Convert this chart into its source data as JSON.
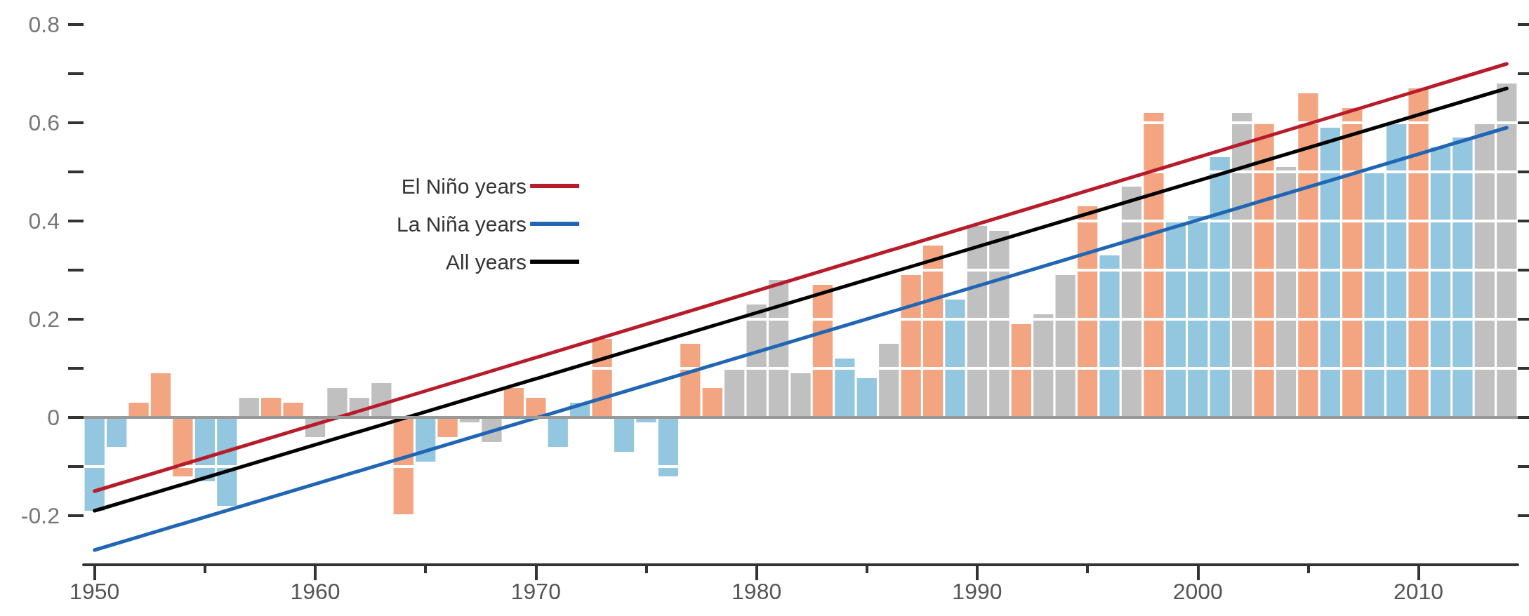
{
  "chart_data": {
    "type": "bar",
    "xlim": [
      1949.5,
      2014.5
    ],
    "xticks": [
      1950,
      {
        "value": 1955,
        "label": null
      },
      1960,
      {
        "value": 1965,
        "label": null
      },
      1970,
      {
        "value": 1975,
        "label": null
      },
      1980,
      {
        "value": 1985,
        "label": null
      },
      1990,
      {
        "value": 1995,
        "label": null
      },
      2000,
      {
        "value": 2005,
        "label": null
      },
      2010
    ],
    "ylim": [
      -0.3,
      0.8
    ],
    "yticks": [
      -0.2,
      {
        "value": -0.1,
        "label": null
      },
      0,
      {
        "value": 0.1,
        "label": null
      },
      0.2,
      {
        "value": 0.3,
        "label": null
      },
      0.4,
      {
        "value": 0.5,
        "label": null
      },
      0.6,
      {
        "value": 0.7,
        "label": null
      },
      0.8
    ],
    "grid": "y",
    "legend": "top left",
    "marker": "none",
    "line_style": "solid",
    "ref_lines": [
      {
        "axis": "y",
        "value": 0,
        "color": "#999999"
      }
    ],
    "series": [
      {
        "x": [
          1950,
          1951,
          1952,
          1953,
          1954,
          1955,
          1956,
          1957,
          1958,
          1959,
          1960,
          1961,
          1962,
          1963,
          1964,
          1965,
          1966,
          1967,
          1968,
          1969,
          1970,
          1971,
          1972,
          1973,
          1974,
          1975,
          1976,
          1977,
          1978,
          1979,
          1980,
          1981,
          1982,
          1983,
          1984,
          1985,
          1986,
          1987,
          1988,
          1989,
          1990,
          1991,
          1992,
          1993,
          1994,
          1995,
          1996,
          1997,
          1998,
          1999,
          2000,
          2001,
          2002,
          2003,
          2004,
          2005,
          2006,
          2007,
          2008,
          2009,
          2010,
          2011,
          2012,
          2013,
          2014
        ],
        "values": [
          -0.19,
          -0.06,
          0.03,
          0.09,
          -0.12,
          -0.13,
          -0.18,
          0.04,
          0.04,
          0.03,
          -0.04,
          0.06,
          0.04,
          0.07,
          -0.2,
          -0.09,
          -0.04,
          -0.01,
          -0.05,
          0.06,
          0.04,
          -0.06,
          0.03,
          0.16,
          -0.07,
          -0.01,
          -0.12,
          0.15,
          0.06,
          0.1,
          0.23,
          0.28,
          0.09,
          0.27,
          0.12,
          0.08,
          0.15,
          0.29,
          0.35,
          0.24,
          0.39,
          0.38,
          0.19,
          0.21,
          0.29,
          0.43,
          0.33,
          0.47,
          0.62,
          0.4,
          0.41,
          0.53,
          0.62,
          0.6,
          0.51,
          0.66,
          0.59,
          0.63,
          0.5,
          0.6,
          0.67,
          0.55,
          0.57,
          0.6,
          0.68
        ],
        "colors": [
          "#93c6df",
          "#93c6df",
          "#f2a580",
          "#f2a580",
          "#f2a580",
          "#93c6df",
          "#93c6df",
          "#c0c0c0",
          "#f2a580",
          "#f2a580",
          "#c0c0c0",
          "#c0c0c0",
          "#c0c0c0",
          "#c0c0c0",
          "#f2a580",
          "#93c6df",
          "#f2a580",
          "#c0c0c0",
          "#c0c0c0",
          "#f2a580",
          "#f2a580",
          "#93c6df",
          "#93c6df",
          "#f2a580",
          "#93c6df",
          "#93c6df",
          "#93c6df",
          "#f2a580",
          "#f2a580",
          "#c0c0c0",
          "#c0c0c0",
          "#c0c0c0",
          "#c0c0c0",
          "#f2a580",
          "#93c6df",
          "#93c6df",
          "#c0c0c0",
          "#f2a580",
          "#f2a580",
          "#93c6df",
          "#c0c0c0",
          "#c0c0c0",
          "#f2a580",
          "#c0c0c0",
          "#c0c0c0",
          "#f2a580",
          "#93c6df",
          "#c0c0c0",
          "#f2a580",
          "#93c6df",
          "#93c6df",
          "#93c6df",
          "#c0c0c0",
          "#f2a580",
          "#c0c0c0",
          "#f2a580",
          "#93c6df",
          "#f2a580",
          "#93c6df",
          "#93c6df",
          "#f2a580",
          "#93c6df",
          "#93c6df",
          "#c0c0c0",
          "#c0c0c0"
        ]
      },
      {
        "type": "line",
        "name": "El Niño years",
        "color": "#b71c2b",
        "x": [
          1950,
          2014
        ],
        "values": [
          -0.15,
          0.72
        ]
      },
      {
        "type": "line",
        "name": "La Niña years",
        "color": "#2166b4",
        "x": [
          1950,
          2014
        ],
        "values": [
          -0.27,
          0.59
        ]
      },
      {
        "type": "line",
        "name": "All years",
        "color": "#000000",
        "x": [
          1950,
          2014
        ],
        "values": [
          -0.19,
          0.67
        ]
      }
    ]
  }
}
